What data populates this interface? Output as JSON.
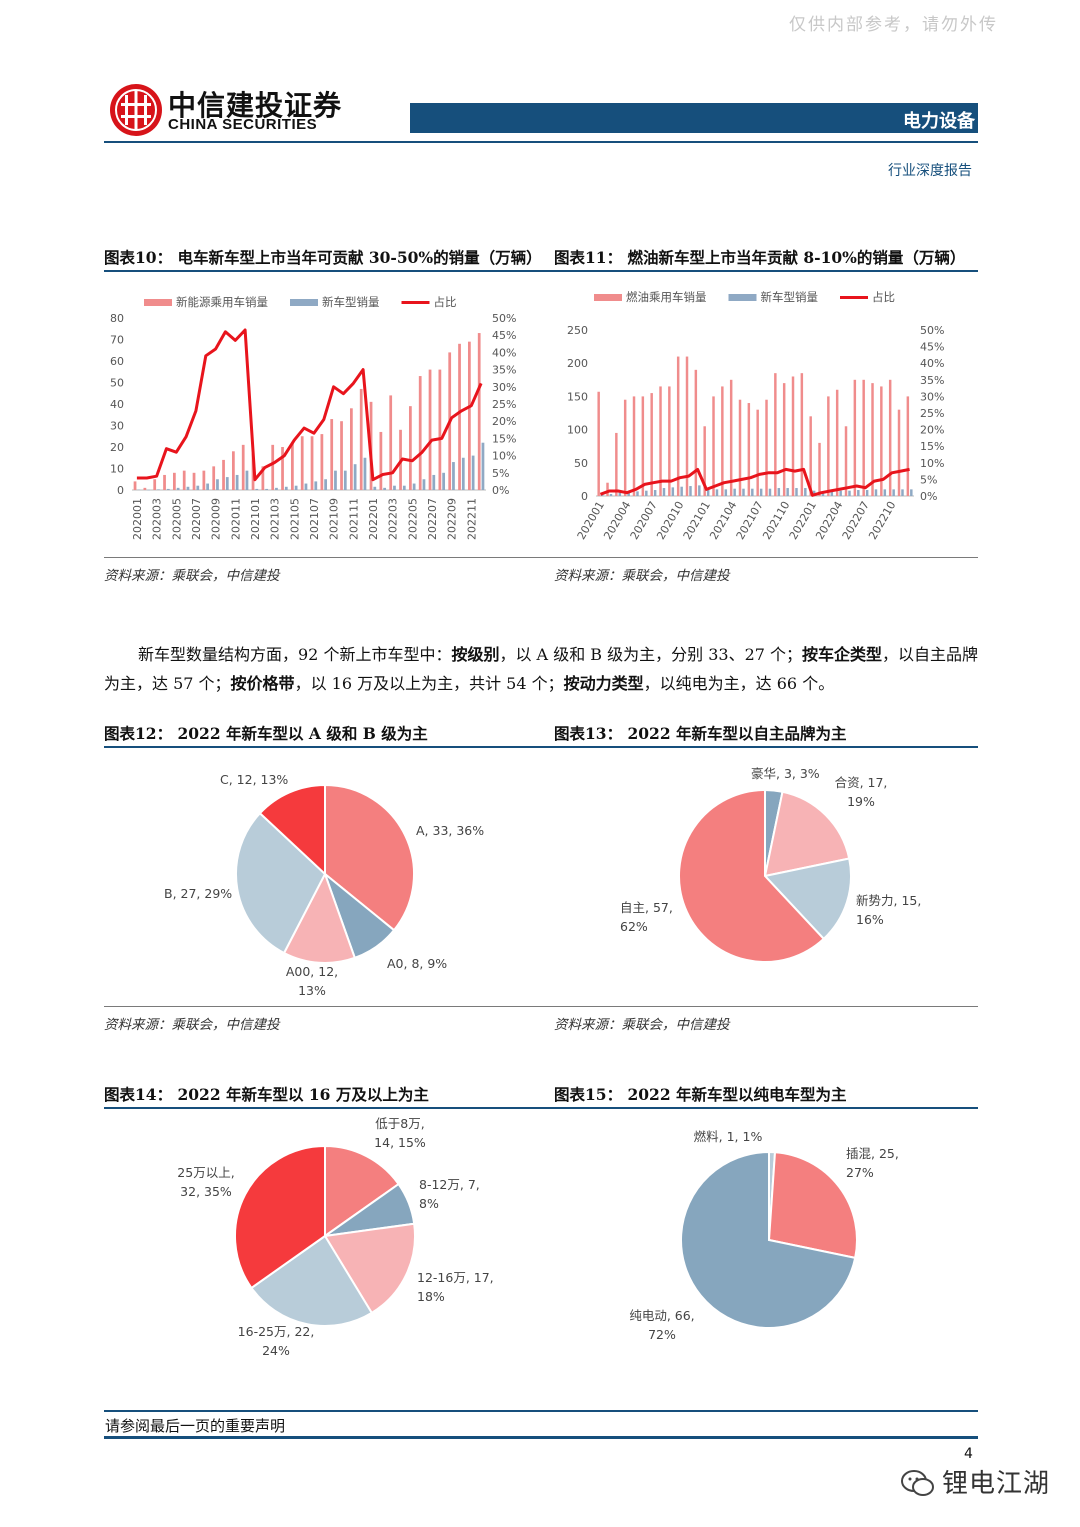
{
  "watermark": "仅供内部参考，请勿外传",
  "header": {
    "logo_cn": "中信建投证券",
    "logo_en": "CHINA SECURITIES",
    "sector": "电力设备",
    "report_type": "行业深度报告"
  },
  "body_paragraph": {
    "p1": "新车型数量结构方面，92 个新上市车型中：",
    "b1": "按级别",
    "p2": "，以 A 级和 B 级为主，分别 33、27 个；",
    "b2": "按车企类型",
    "p3": "，以自主品牌为主，达 57 个；",
    "b3": "按价格带",
    "p4": "，以 16 万及以上为主，共计 54 个；",
    "b4": "按动力类型",
    "p5": "，以纯电为主，达 66 个。"
  },
  "figures": {
    "fig10": {
      "title": "图表10：   电车新车型上市当年可贡献 30-50%的销量（万辆）",
      "source": "资料来源：乘联会，中信建投"
    },
    "fig11": {
      "title": "图表11：   燃油新车型上市当年贡献 8-10%的销量（万辆）",
      "source": "资料来源：乘联会，中信建投"
    },
    "fig12": {
      "title": "图表12：   2022 年新车型以 A 级和 B 级为主",
      "source": "资料来源：乘联会，中信建投"
    },
    "fig13": {
      "title": "图表13：   2022 年新车型以自主品牌为主",
      "source": "资料来源：乘联会，中信建投"
    },
    "fig14": {
      "title": "图表14：   2022 年新车型以 16 万及以上为主"
    },
    "fig15": {
      "title": "图表15：   2022 年新车型以纯电车型为主"
    }
  },
  "colors": {
    "brand_blue": "#164f7c",
    "bar_red": "#f08c8c",
    "bar_blue": "#8fa9c4",
    "line_red": "#e8141c",
    "pie_salmon": "#f47f7f",
    "pie_blue": "#86a6be",
    "pie_pink": "#f7b3b5",
    "pie_lightblue": "#b8ccd9",
    "pie_red": "#f53a3d"
  },
  "chart_data": [
    {
      "id": "fig10",
      "type": "bar",
      "legend": [
        "新能源乘用车销量",
        "新车型销量",
        "占比"
      ],
      "legend_position": "top",
      "x_tick_labels": [
        "202001",
        "202003",
        "202005",
        "202007",
        "202009",
        "202011",
        "202101",
        "202103",
        "202105",
        "202107",
        "202109",
        "202111",
        "202201",
        "202203",
        "202205",
        "202207",
        "202209",
        "202211"
      ],
      "left_axis": {
        "ticks": [
          "0",
          "10",
          "20",
          "30",
          "40",
          "50",
          "60",
          "70",
          "80"
        ],
        "range": [
          0,
          80
        ]
      },
      "right_axis": {
        "ticks": [
          "0%",
          "5%",
          "10%",
          "15%",
          "20%",
          "25%",
          "30%",
          "35%",
          "40%",
          "45%",
          "50%"
        ],
        "range": [
          0,
          0.5
        ]
      },
      "categories": [
        "202001",
        "202002",
        "202003",
        "202004",
        "202005",
        "202006",
        "202007",
        "202008",
        "202009",
        "202010",
        "202011",
        "202012",
        "202101",
        "202102",
        "202103",
        "202104",
        "202105",
        "202106",
        "202107",
        "202108",
        "202109",
        "202110",
        "202111",
        "202112",
        "202201",
        "202202",
        "202203",
        "202204",
        "202205",
        "202206",
        "202207",
        "202208",
        "202209",
        "202210",
        "202211",
        "202212"
      ],
      "series": [
        {
          "name": "新能源乘用车销量",
          "kind": "bar",
          "values": [
            4,
            1,
            5,
            7,
            8,
            9,
            8,
            9,
            11,
            14,
            18,
            21,
            17,
            11,
            21,
            20,
            22,
            25,
            25,
            26,
            33,
            32,
            38,
            47,
            41,
            27,
            44,
            28,
            39,
            53,
            56,
            56,
            64,
            68,
            69,
            73
          ]
        },
        {
          "name": "新车型销量",
          "kind": "bar",
          "values": [
            0.2,
            0.1,
            0.3,
            0.5,
            1,
            1.5,
            2,
            3,
            5,
            6,
            7,
            9,
            0.5,
            0.5,
            1,
            1.5,
            2,
            3,
            4,
            5,
            9,
            9,
            12,
            15,
            1.5,
            1,
            2,
            2,
            3,
            5,
            7,
            8,
            13,
            15,
            16,
            22
          ]
        },
        {
          "name": "占比",
          "kind": "line",
          "axis": "right",
          "values": [
            0.035,
            0.035,
            0.04,
            0.12,
            0.11,
            0.155,
            0.23,
            0.39,
            0.41,
            0.46,
            0.435,
            0.465,
            0.03,
            0.065,
            0.08,
            0.1,
            0.145,
            0.18,
            0.165,
            0.205,
            0.3,
            0.28,
            0.31,
            0.35,
            0.03,
            0.045,
            0.05,
            0.09,
            0.085,
            0.11,
            0.145,
            0.15,
            0.21,
            0.23,
            0.245,
            0.31
          ]
        }
      ]
    },
    {
      "id": "fig11",
      "type": "bar",
      "legend": [
        "燃油乘用车销量",
        "新车型销量",
        "占比"
      ],
      "legend_position": "top",
      "x_tick_labels": [
        "202001",
        "202004",
        "202007",
        "202010",
        "202101",
        "202104",
        "202107",
        "202110",
        "202201",
        "202204",
        "202207",
        "202210"
      ],
      "left_axis": {
        "ticks": [
          "0",
          "50",
          "100",
          "150",
          "200",
          "250"
        ],
        "range": [
          0,
          250
        ]
      },
      "right_axis": {
        "ticks": [
          "0%",
          "5%",
          "10%",
          "15%",
          "20%",
          "25%",
          "30%",
          "35%",
          "40%",
          "45%",
          "50%"
        ],
        "range": [
          0,
          0.5
        ]
      },
      "categories": [
        "202001",
        "202002",
        "202003",
        "202004",
        "202005",
        "202006",
        "202007",
        "202008",
        "202009",
        "202010",
        "202011",
        "202012",
        "202101",
        "202102",
        "202103",
        "202104",
        "202105",
        "202106",
        "202107",
        "202108",
        "202109",
        "202110",
        "202111",
        "202112",
        "202201",
        "202202",
        "202203",
        "202204",
        "202205",
        "202206",
        "202207",
        "202208",
        "202209",
        "202210",
        "202211",
        "202212"
      ],
      "series": [
        {
          "name": "燃油乘用车销量",
          "kind": "bar",
          "values": [
            157,
            20,
            95,
            145,
            150,
            150,
            155,
            165,
            165,
            210,
            210,
            190,
            105,
            150,
            165,
            175,
            145,
            140,
            130,
            145,
            185,
            170,
            180,
            185,
            120,
            80,
            150,
            160,
            105,
            175,
            175,
            170,
            165,
            175,
            130,
            150
          ]
        },
        {
          "name": "新车型销量",
          "kind": "bar",
          "values": [
            5,
            3,
            5,
            6,
            7,
            8,
            9,
            12,
            13,
            14,
            15,
            16,
            10,
            10,
            10,
            11,
            11,
            11,
            11,
            11,
            12,
            12,
            12,
            12,
            8,
            5,
            8,
            8,
            8,
            9,
            9,
            10,
            10,
            10,
            10,
            10
          ]
        },
        {
          "name": "占比",
          "kind": "line",
          "axis": "right",
          "values": [
            0.005,
            0.015,
            0.015,
            0.01,
            0.02,
            0.035,
            0.04,
            0.045,
            0.045,
            0.055,
            0.06,
            0.08,
            0.02,
            0.03,
            0.04,
            0.045,
            0.05,
            0.055,
            0.065,
            0.07,
            0.07,
            0.08,
            0.075,
            0.08,
            0.002,
            0.01,
            0.015,
            0.02,
            0.025,
            0.03,
            0.025,
            0.045,
            0.05,
            0.07,
            0.075,
            0.08
          ]
        }
      ]
    },
    {
      "id": "fig12",
      "type": "pie",
      "slices": [
        {
          "label": "A, 33, 36%",
          "value": 33,
          "color": "#f47f7f"
        },
        {
          "label": "A0, 8, 9%",
          "value": 8,
          "color": "#86a6be"
        },
        {
          "label": "A00, 12,\n13%",
          "value": 12,
          "color": "#f7b3b5"
        },
        {
          "label": "B, 27, 29%",
          "value": 27,
          "color": "#b8ccd9"
        },
        {
          "label": "C, 12, 13%",
          "value": 12,
          "color": "#f53a3d"
        }
      ]
    },
    {
      "id": "fig13",
      "type": "pie",
      "slices": [
        {
          "label": "豪华, 3, 3%",
          "value": 3,
          "color": "#86a6be"
        },
        {
          "label": "合资, 17,\n19%",
          "value": 17,
          "color": "#f7b3b5"
        },
        {
          "label": "新势力, 15,\n16%",
          "value": 15,
          "color": "#b8ccd9"
        },
        {
          "label": "自主, 57,\n62%",
          "value": 57,
          "color": "#f47f7f"
        }
      ]
    },
    {
      "id": "fig14",
      "type": "pie",
      "slices": [
        {
          "label": "低于8万,\n14, 15%",
          "value": 14,
          "color": "#f47f7f"
        },
        {
          "label": "8-12万, 7,\n8%",
          "value": 7,
          "color": "#86a6be"
        },
        {
          "label": "12-16万, 17,\n18%",
          "value": 17,
          "color": "#f7b3b5"
        },
        {
          "label": "16-25万, 22,\n24%",
          "value": 22,
          "color": "#b8ccd9"
        },
        {
          "label": "25万以上,\n32, 35%",
          "value": 32,
          "color": "#f53a3d"
        }
      ]
    },
    {
      "id": "fig15",
      "type": "pie",
      "slices": [
        {
          "label": "燃料, 1, 1%",
          "value": 1,
          "color": "#b8ccd9"
        },
        {
          "label": "插混, 25,\n27%",
          "value": 25,
          "color": "#f47f7f"
        },
        {
          "label": "纯电动, 66,\n72%",
          "value": 66,
          "color": "#86a6be"
        }
      ]
    }
  ],
  "footer": {
    "disclaimer": "请参阅最后一页的重要声明",
    "page_number": "4",
    "wechat_name": "锂电江湖"
  }
}
